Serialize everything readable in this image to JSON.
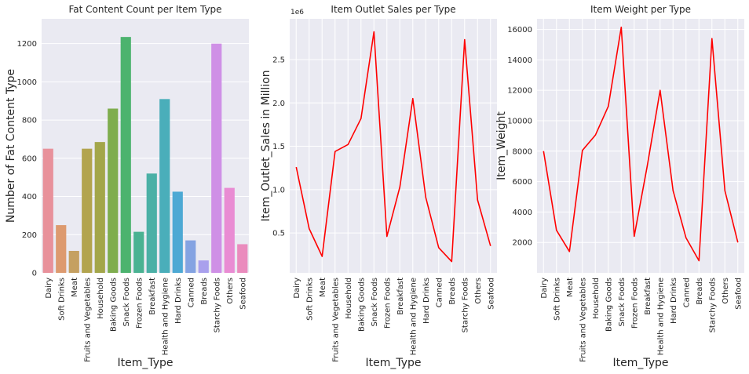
{
  "categories": [
    "Dairy",
    "Soft Drinks",
    "Meat",
    "Fruits and Vegetables",
    "Household",
    "Baking Goods",
    "Snack Foods",
    "Frozen Foods",
    "Breakfast",
    "Health and Hygiene",
    "Hard Drinks",
    "Canned",
    "Breads",
    "Starchy Foods",
    "Others",
    "Seafood"
  ],
  "chart_data": [
    {
      "type": "bar",
      "title": "Fat Content Count per Item Type",
      "xlabel": "Item_Type",
      "ylabel": "Number of Fat Content Type",
      "ylim": [
        0,
        1330
      ],
      "yticks": [
        0,
        200,
        400,
        600,
        800,
        1000,
        1200
      ],
      "values": [
        650,
        250,
        115,
        650,
        685,
        860,
        1235,
        215,
        520,
        910,
        425,
        170,
        65,
        1200,
        445,
        150
      ],
      "colors": [
        "#e8919b",
        "#dd9a6f",
        "#c5a061",
        "#b2a44e",
        "#a3a64a",
        "#7fad4e",
        "#4cb36e",
        "#4ab292",
        "#4bb0a6",
        "#4aaeba",
        "#4da9d4",
        "#84a3e2",
        "#a9a0ed",
        "#cf90e6",
        "#e98cd3",
        "#ea8bbd"
      ],
      "grid": true
    },
    {
      "type": "line",
      "title": "Item Outlet Sales per Type",
      "xlabel": "Item_Type",
      "ylabel": "Item_Outlet_Sales in Million",
      "offset_text": "1e6",
      "ylim": [
        0.04,
        2.97
      ],
      "yticks": [
        0.5,
        1.0,
        1.5,
        2.0,
        2.5
      ],
      "ytick_labels": [
        "0.5",
        "1.0",
        "1.5",
        "2.0",
        "2.5"
      ],
      "values": [
        1.26,
        0.55,
        0.23,
        1.44,
        1.52,
        1.82,
        2.82,
        0.46,
        1.03,
        2.05,
        0.91,
        0.33,
        0.17,
        2.73,
        0.88,
        0.35
      ],
      "color": "#ff0000",
      "grid": true
    },
    {
      "type": "line",
      "title": "Item Weight per Type",
      "xlabel": "Item_Type",
      "ylabel": "Item_Weight",
      "ylim": [
        0,
        16700
      ],
      "yticks": [
        2000,
        4000,
        6000,
        8000,
        10000,
        12000,
        14000,
        16000
      ],
      "values": [
        8000,
        2800,
        1400,
        8050,
        9050,
        10950,
        16150,
        2400,
        7000,
        12000,
        5400,
        2300,
        800,
        15400,
        5400,
        2000
      ],
      "color": "#ff0000",
      "grid": true
    }
  ]
}
